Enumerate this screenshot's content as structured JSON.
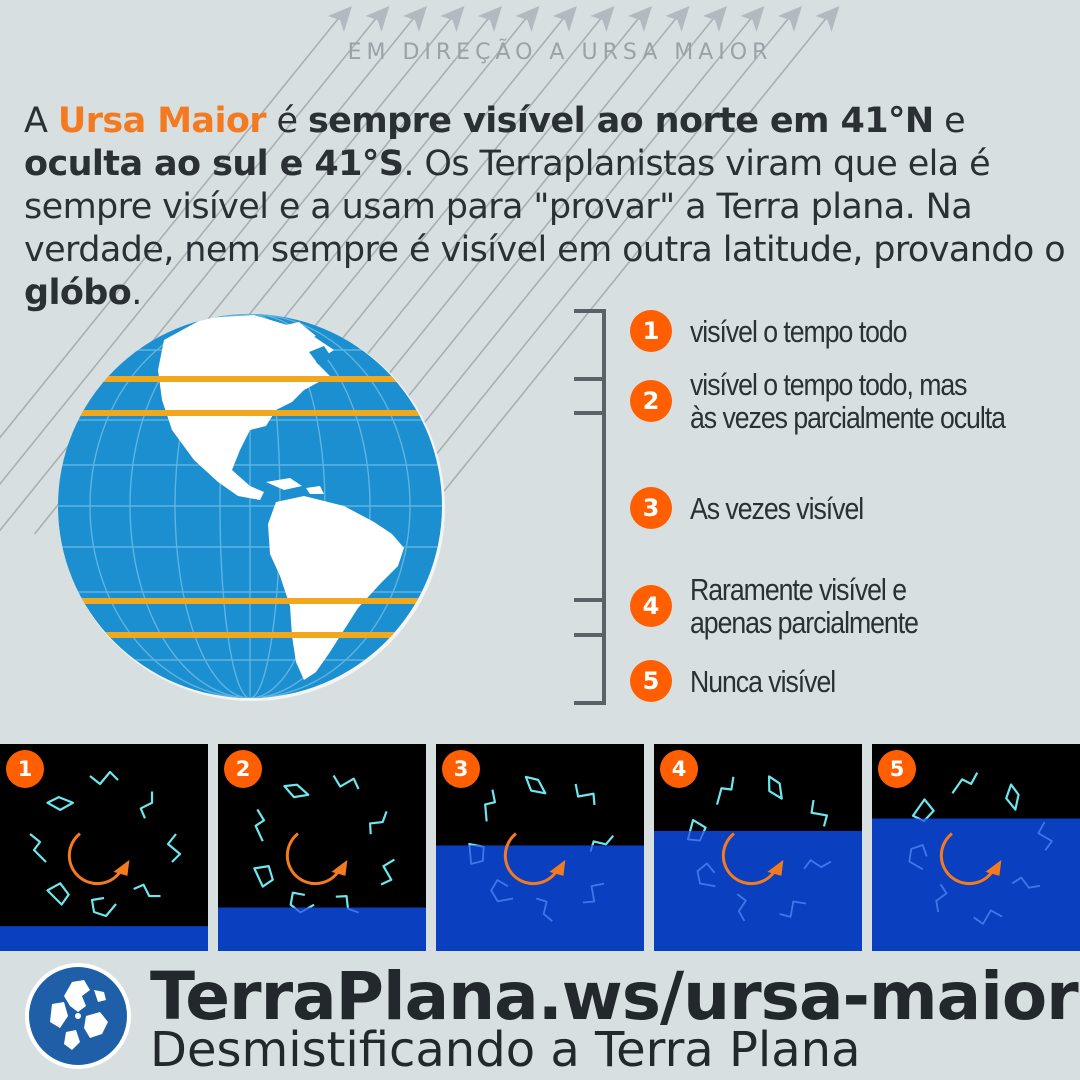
{
  "header": {
    "direction_label": "EM DIREÇÃO A URSA MAIOR"
  },
  "intro": {
    "p1": "A ",
    "p2": "Ursa Maior",
    "p3": " é ",
    "p4": "sempre visível ao norte em 41°N",
    "p5": " e ",
    "p6": "oculta ao sul e 41°S",
    "p7": ". Os Terraplanistas viram que ela é sempre visível e a usam para \"provar\" a Terra plana. Na verdade, nem sempre é visível em outra latitude, provando o ",
    "p8": "glóbo",
    "p9": "."
  },
  "legend": [
    {
      "num": "1",
      "line1": "visível o tempo todo",
      "line2": ""
    },
    {
      "num": "2",
      "line1": "visível o tempo todo, mas",
      "line2": "às vezes parcialmente oculta"
    },
    {
      "num": "3",
      "line1": "As vezes visível",
      "line2": ""
    },
    {
      "num": "4",
      "line1": "Raramente visível e",
      "line2": "apenas parcialmente"
    },
    {
      "num": "5",
      "line1": "Nunca visível",
      "line2": ""
    }
  ],
  "panels": [
    {
      "num": "1",
      "horizon_fraction": 0.12
    },
    {
      "num": "2",
      "horizon_fraction": 0.21
    },
    {
      "num": "3",
      "horizon_fraction": 0.51
    },
    {
      "num": "4",
      "horizon_fraction": 0.58
    },
    {
      "num": "5",
      "horizon_fraction": 0.64
    }
  ],
  "footer": {
    "url": "TerraPlana.ws/ursa-maior",
    "subtitle": "Desmistificando a Terra Plana"
  },
  "colors": {
    "background": "#d8dfe0",
    "accent_orange": "#f47a20",
    "badge_orange": "#ff5f00",
    "ocean_blue": "#1b8fd0",
    "latitude_line": "#f2a81d",
    "star_cyan": "#6ee6ee",
    "horizon_blue": "#0a3fbf",
    "text_dark": "#2b3035"
  },
  "icons": {
    "globe": "globe-americas-icon",
    "logo": "flat-earth-logo-icon"
  }
}
